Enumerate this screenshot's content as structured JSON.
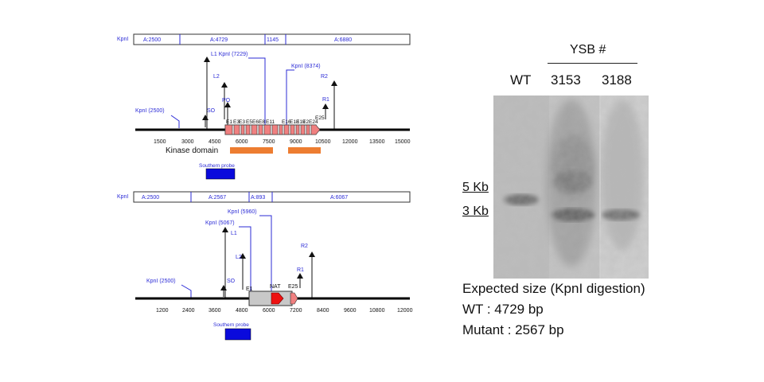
{
  "wt_construct": {
    "restriction_header": {
      "label": "KpnI",
      "segments": [
        "A:2500",
        "A:4729",
        "1145",
        "A:6880"
      ]
    },
    "site_labels": [
      "L1 KpnI (7229)",
      "KpnI (8374)",
      "KpnI (2500)"
    ],
    "primers": [
      "L2",
      "PO",
      "SO",
      "R2",
      "R1"
    ],
    "exons": [
      "E1",
      "E3",
      "E3",
      "E5",
      "E6",
      "E8",
      "E11",
      "E16",
      "E18",
      "E19",
      "E2",
      "E24",
      "E25"
    ],
    "ticks": [
      "1500",
      "3000",
      "4500",
      "6000",
      "7500",
      "9000",
      "10500",
      "12000",
      "13500",
      "15000"
    ],
    "domain_label": "Kinase domain",
    "probe_label": "Southern probe"
  },
  "mutant_construct": {
    "restriction_header": {
      "label": "KpnI",
      "segments": [
        "A:2500",
        "A:2567",
        "A:893",
        "A:6067"
      ]
    },
    "site_labels": [
      "KpnI (5960)",
      "KpnI (5067)",
      "KpnI (2500)"
    ],
    "primers": [
      "L1",
      "L2",
      "SO",
      "R2",
      "R1"
    ],
    "elements": [
      "E1",
      "NAT",
      "E25"
    ],
    "ticks": [
      "1200",
      "2400",
      "3600",
      "4800",
      "6000",
      "7200",
      "8400",
      "9600",
      "10800",
      "12000"
    ],
    "probe_label": "Southern probe"
  },
  "blot": {
    "group_label": "YSB #",
    "lanes": [
      "WT",
      "3153",
      "3188"
    ],
    "size_markers": [
      "5 Kb",
      "3 Kb"
    ]
  },
  "notes": {
    "title": "Expected size (KpnI digestion)",
    "wt": "WT : 4729 bp",
    "mutant": "Mutant : 2567 bp"
  },
  "colors": {
    "label_blue": "#2b2bd6",
    "exon": "#f08080",
    "kinase_domain": "#ed7d31",
    "probe": "#0a0adc",
    "nat": "#ee1111",
    "mutant_box": "#c8c8c8"
  }
}
